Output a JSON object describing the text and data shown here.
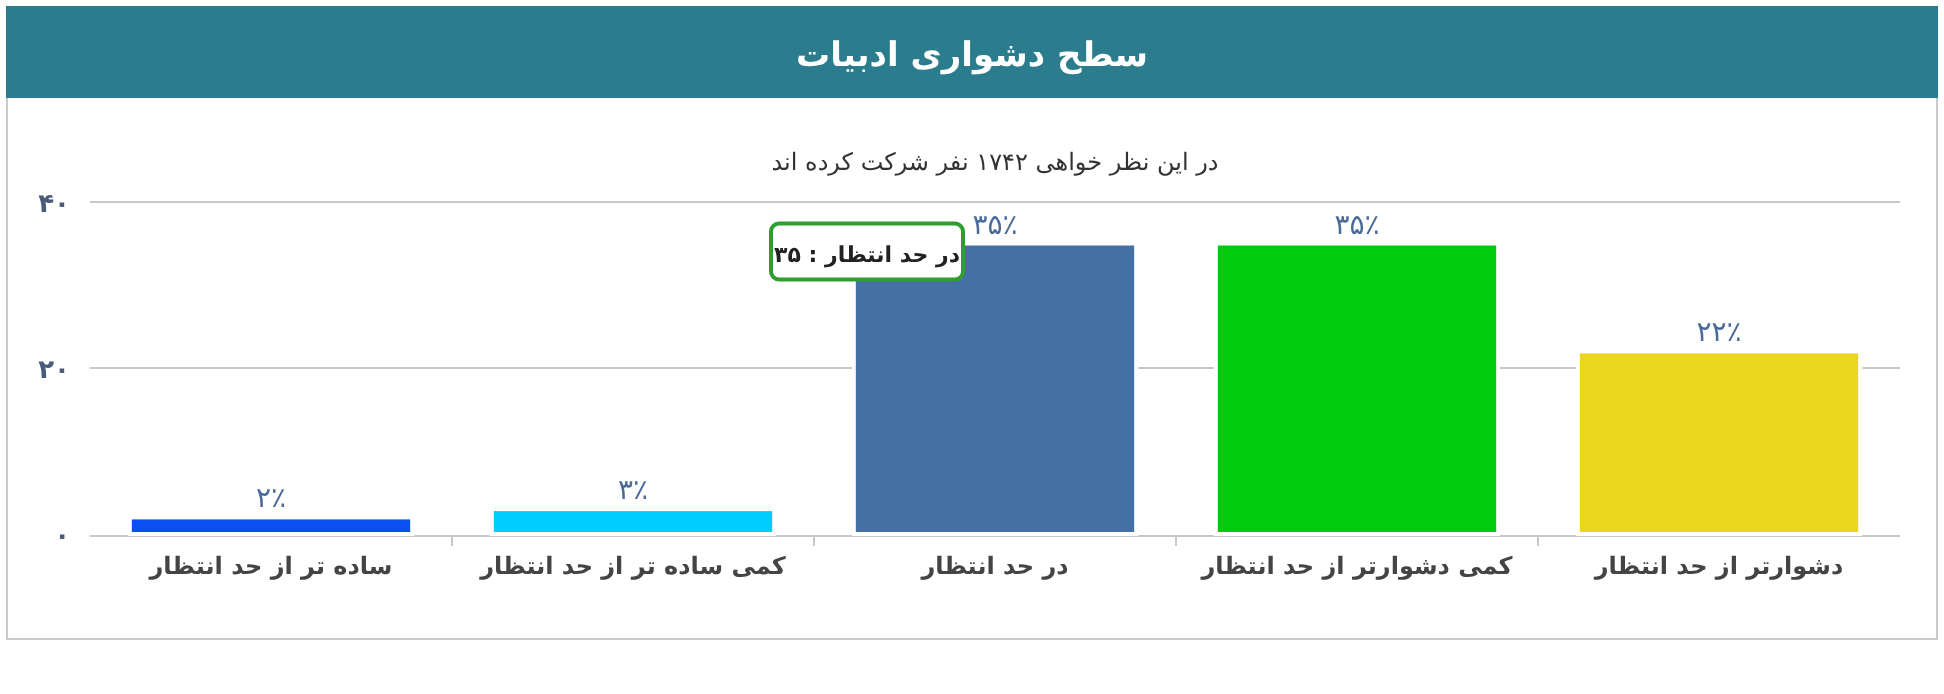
{
  "chart_data": {
    "type": "bar",
    "title": "سطح دشواری ادبیات",
    "subtitle": "در این نظر خواهی ۱۷۴۲ نفر شرکت کرده اند",
    "categories": [
      "ساده تر از حد انتظار",
      "کمی ساده تر از حد انتظار",
      "در حد انتظار",
      "کمی دشوارتر از حد انتظار",
      "دشوارتر از حد انتظار"
    ],
    "values": [
      2,
      3,
      35,
      35,
      22
    ],
    "colors": [
      "#0a4ff0",
      "#00ccff",
      "#4470a5",
      "#00cc0c",
      "#e9d61d"
    ],
    "value_labels": [
      "۲٪",
      "۳٪",
      "۳۵٪",
      "۳۵٪",
      "۲۲٪"
    ],
    "ylim": [
      0,
      40
    ],
    "yticks": [
      {
        "value": 0,
        "label": "۰"
      },
      {
        "value": 20,
        "label": "۲۰"
      },
      {
        "value": 40,
        "label": "۴۰"
      }
    ],
    "grid": "y",
    "annotations": [
      {
        "text": "در حد انتظار : ۳۵",
        "x": "در حد انتظار",
        "y": 35
      }
    ]
  }
}
